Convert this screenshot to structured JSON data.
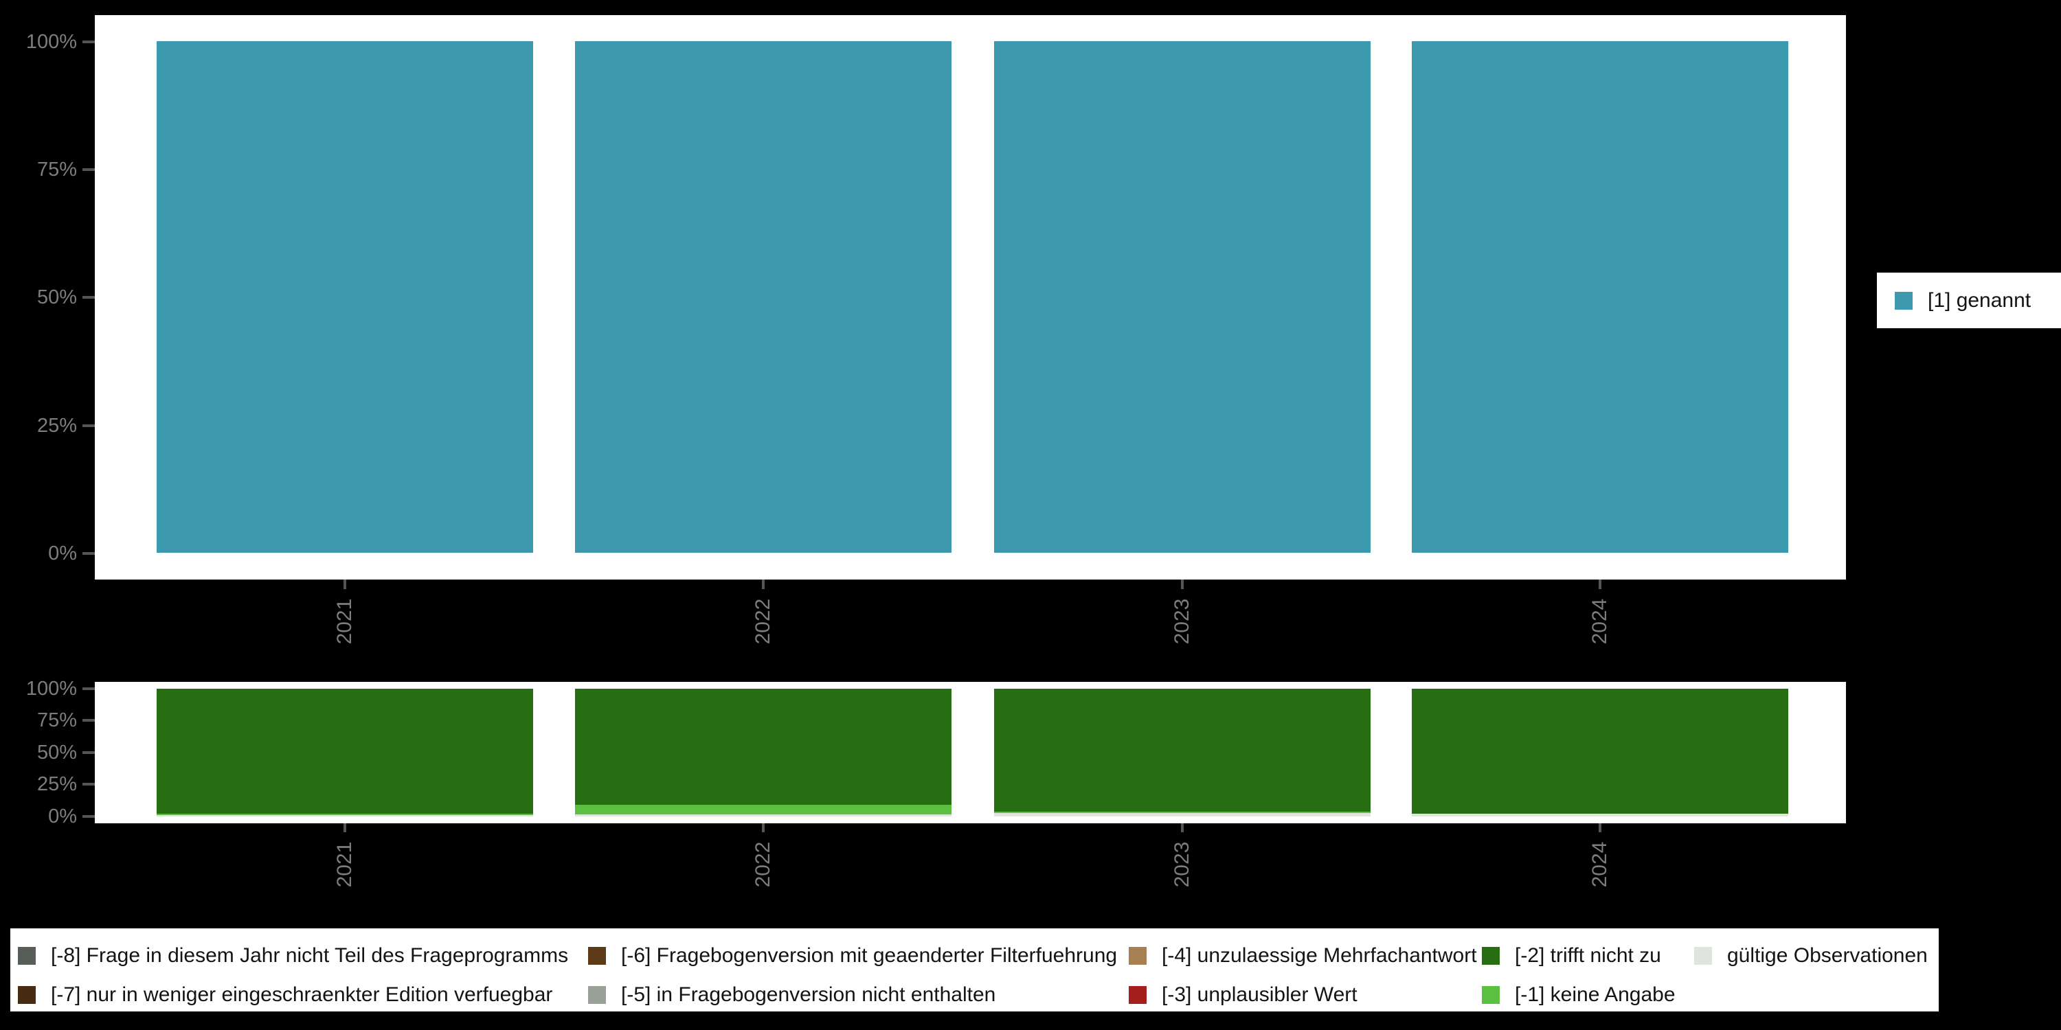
{
  "page": {
    "background": "#000000",
    "panel_background": "#ffffff",
    "axis_text_color": "#7d7d7d",
    "tick_color": "#555555",
    "legend_text_color": "#141414"
  },
  "chart_data": [
    {
      "type": "bar",
      "stacked": true,
      "title": "",
      "categories": [
        "2021",
        "2022",
        "2023",
        "2024"
      ],
      "series": [
        {
          "name": "[1] genannt",
          "color": "#3d99ae",
          "values": [
            100,
            100,
            100,
            100
          ]
        }
      ],
      "y_ticks": [
        "0%",
        "25%",
        "50%",
        "75%",
        "100%"
      ],
      "ylim": [
        0,
        100
      ],
      "grid": false,
      "legend_position": "right"
    },
    {
      "type": "bar",
      "stacked": true,
      "title": "",
      "categories": [
        "2021",
        "2022",
        "2023",
        "2024"
      ],
      "series": [
        {
          "name": "[-2] trifft nicht zu",
          "color": "#266e11",
          "values": [
            97.9,
            90.9,
            96.0,
            98.1
          ]
        },
        {
          "name": "[-1] keine Angabe",
          "color": "#5bbf40",
          "values": [
            1.1,
            7.5,
            1.3,
            0
          ]
        },
        {
          "name": "gültige Observationen",
          "color": "#dfe5dc",
          "values": [
            1.0,
            1.6,
            2.7,
            1.9
          ]
        }
      ],
      "y_ticks": [
        "0%",
        "25%",
        "50%",
        "75%",
        "100%"
      ],
      "ylim": [
        0,
        100
      ],
      "grid": false,
      "legend_position": "bottom",
      "legend_items": [
        {
          "label": "[-8] Frage in diesem Jahr nicht Teil des Frageprogramms",
          "color": "#575d57"
        },
        {
          "label": "[-7] nur in weniger eingeschraenkter Edition verfuegbar",
          "color": "#472c13"
        },
        {
          "label": "[-6] Fragebogenversion mit geaenderter Filterfuehrung",
          "color": "#5d3a17"
        },
        {
          "label": "[-5] in Fragebogenversion nicht enthalten",
          "color": "#9aa197"
        },
        {
          "label": "[-4] unzulaessige Mehrfachantwort",
          "color": "#a68052"
        },
        {
          "label": "[-3] unplausibler Wert",
          "color": "#a51e1e"
        },
        {
          "label": "[-2] trifft nicht zu",
          "color": "#266e11"
        },
        {
          "label": "[-1] keine Angabe",
          "color": "#5bbf40"
        },
        {
          "label": "gültige Observationen",
          "color": "#dfe5dc"
        }
      ]
    }
  ]
}
